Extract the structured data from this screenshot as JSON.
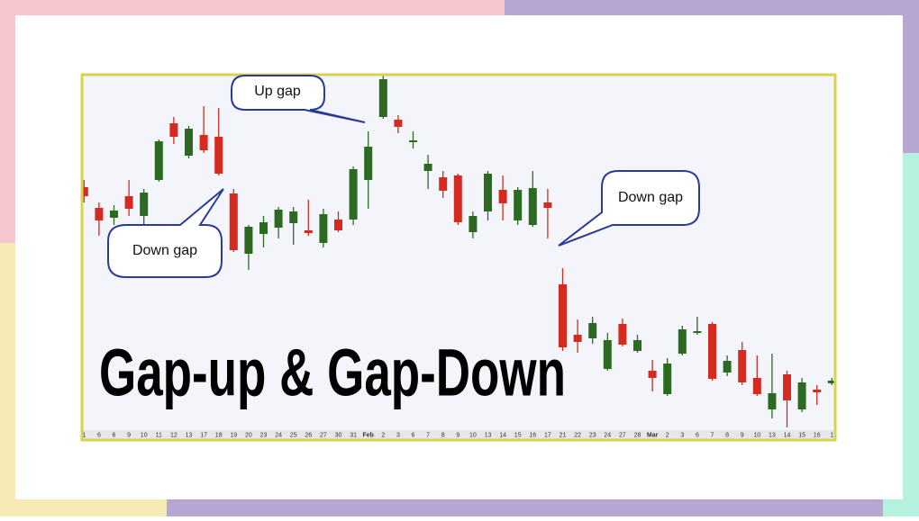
{
  "chart_data": {
    "type": "candlestick",
    "title": "Gap-up & Gap-Down",
    "annotations": [
      "Up gap",
      "Down gap",
      "Down gap"
    ],
    "categories": [
      "1",
      "6",
      "6",
      "9",
      "10",
      "11",
      "12",
      "13",
      "17",
      "18",
      "19",
      "20",
      "23",
      "24",
      "25",
      "26",
      "27",
      "30",
      "31",
      "Feb",
      "2",
      "3",
      "6",
      "7",
      "8",
      "9",
      "10",
      "13",
      "14",
      "15",
      "16",
      "17",
      "21",
      "22",
      "23",
      "24",
      "27",
      "28",
      "Mar",
      "2",
      "3",
      "6",
      "7",
      "8",
      "9",
      "10",
      "13",
      "14",
      "15",
      "16",
      "1"
    ],
    "open": [
      262,
      239,
      228,
      252,
      230,
      270,
      333,
      297,
      320,
      318,
      255,
      188,
      210,
      217,
      222,
      214,
      200,
      226,
      226,
      270,
      340,
      337,
      313,
      280,
      273,
      275,
      212,
      235,
      259,
      225,
      220,
      245,
      154,
      98,
      94,
      60,
      110,
      80,
      58,
      32,
      77,
      100,
      110,
      56,
      81,
      50,
      15,
      54,
      15,
      37,
      44
    ],
    "high": [
      270,
      245,
      242,
      270,
      260,
      315,
      340,
      330,
      352,
      350,
      260,
      220,
      230,
      240,
      240,
      248,
      238,
      235,
      285,
      324,
      388,
      342,
      324,
      298,
      280,
      277,
      235,
      280,
      275,
      262,
      280,
      260,
      172,
      115,
      118,
      100,
      116,
      98,
      70,
      72,
      108,
      118,
      112,
      75,
      90,
      75,
      77,
      58,
      50,
      42,
      50
    ],
    "low": [
      245,
      208,
      220,
      230,
      220,
      268,
      310,
      294,
      300,
      275,
      190,
      170,
      195,
      205,
      198,
      208,
      195,
      212,
      220,
      238,
      338,
      322,
      305,
      260,
      250,
      220,
      205,
      225,
      225,
      220,
      218,
      205,
      80,
      78,
      88,
      58,
      85,
      78,
      35,
      30,
      75,
      98,
      47,
      52,
      42,
      30,
      5,
      -5,
      12,
      20,
      42
    ],
    "close": [
      252,
      225,
      236,
      238,
      256,
      313,
      318,
      327,
      303,
      277,
      192,
      218,
      223,
      237,
      235,
      211,
      232,
      214,
      282,
      307,
      382,
      329,
      314,
      288,
      258,
      223,
      230,
      277,
      244,
      259,
      261,
      239,
      84,
      90,
      111,
      92,
      87,
      92,
      50,
      66,
      104,
      102,
      49,
      69,
      45,
      32,
      33,
      25,
      45,
      34,
      47
    ],
    "up_color": "#2c6a22",
    "down_color": "#d42a20",
    "ylim": [
      -8,
      387
    ]
  }
}
